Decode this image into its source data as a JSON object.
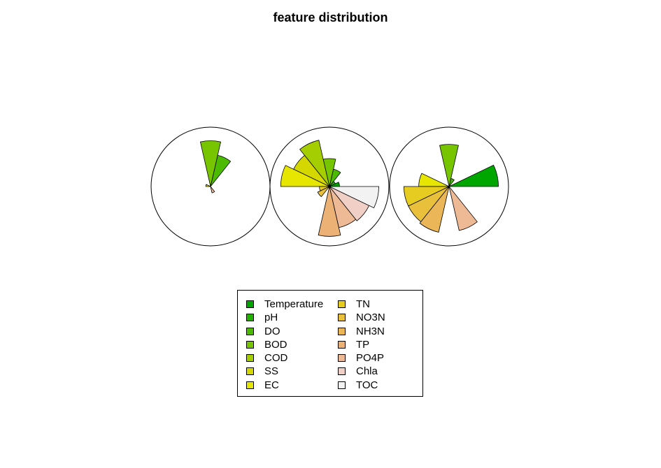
{
  "title": "feature distribution",
  "chart_data": {
    "type": "stars",
    "title": "feature distribution",
    "features": [
      "Temperature",
      "pH",
      "DO",
      "BOD",
      "COD",
      "SS",
      "EC",
      "TN",
      "NO3N",
      "NH3N",
      "TP",
      "PO4P",
      "Chla",
      "TOC"
    ],
    "colors": [
      "#00A600",
      "#24B000",
      "#4BBA00",
      "#77C400",
      "#A5CE00",
      "#D4D800",
      "#E6E600",
      "#E6CB20",
      "#E8C03B",
      "#EAB657",
      "#ECB175",
      "#EEB995",
      "#F0CFC6",
      "#F2F2F2"
    ],
    "stars": [
      {
        "values": [
          0.0,
          0.0,
          0.54,
          0.77,
          0.0,
          0.0,
          0.08,
          0.0,
          0.0,
          0.0,
          0.0,
          0.11,
          0.0,
          0.0
        ]
      },
      {
        "values": [
          0.17,
          0.11,
          0.3,
          0.47,
          0.8,
          0.67,
          0.82,
          0.17,
          0.22,
          0.0,
          0.84,
          0.71,
          0.74,
          0.83
        ]
      },
      {
        "values": [
          0.83,
          0.0,
          0.14,
          0.71,
          0.0,
          0.0,
          0.51,
          0.76,
          0.76,
          0.79,
          0.0,
          0.76,
          0.0,
          0.0
        ]
      }
    ],
    "legend": {
      "position": "bottom",
      "ncol": 2
    }
  }
}
